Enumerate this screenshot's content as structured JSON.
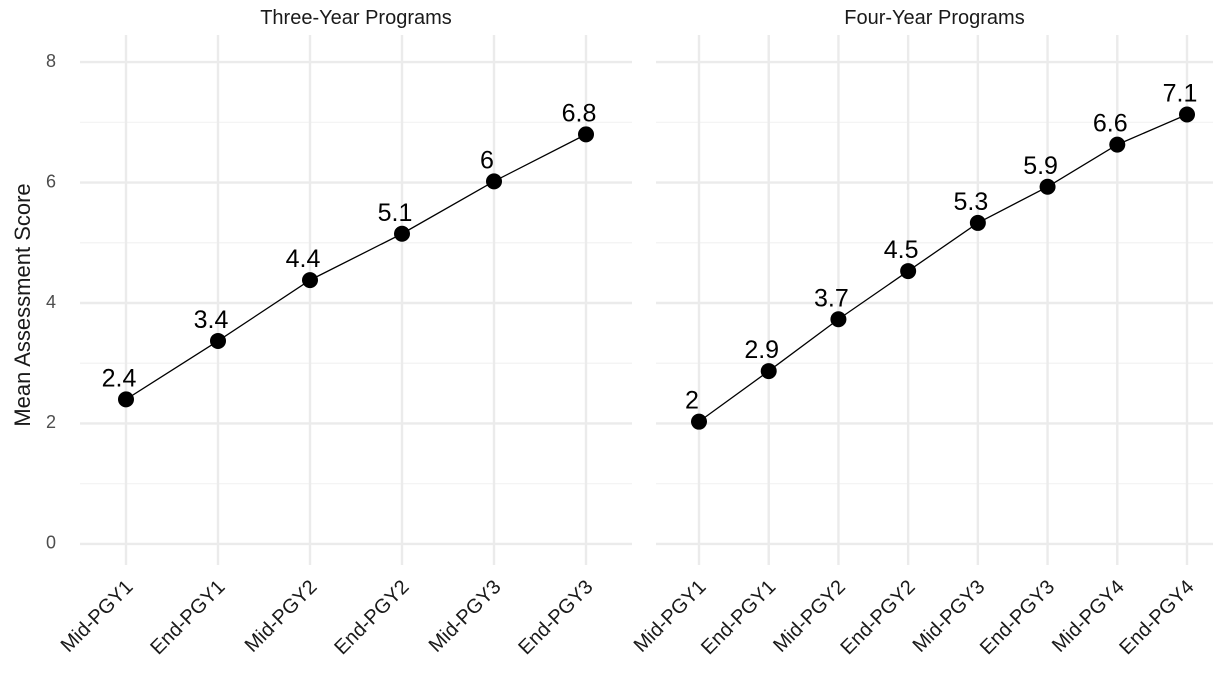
{
  "chart_data": {
    "type": "line",
    "ylabel": "Mean Assessment Score",
    "ylim": [
      0,
      8
    ],
    "yticks": [
      0,
      2,
      4,
      6,
      8
    ],
    "grid": true,
    "legend": "none",
    "colors": {
      "line": "#000000",
      "grid": "#ebebeb",
      "text": "#1a1a1a"
    },
    "panels": [
      {
        "title": "Three-Year Programs",
        "categories": [
          "Mid-PGY1",
          "End-PGY1",
          "Mid-PGY2",
          "End-PGY2",
          "Mid-PGY3",
          "End-PGY3"
        ],
        "values": [
          2.4,
          3.37,
          4.38,
          5.15,
          6.02,
          6.8
        ],
        "labels": [
          "2.4",
          "3.4",
          "4.4",
          "5.1",
          "6",
          "6.8"
        ]
      },
      {
        "title": "Four-Year Programs",
        "categories": [
          "Mid-PGY1",
          "End-PGY1",
          "Mid-PGY2",
          "End-PGY2",
          "Mid-PGY3",
          "End-PGY3",
          "Mid-PGY4",
          "End-PGY4"
        ],
        "values": [
          2.03,
          2.87,
          3.73,
          4.53,
          5.33,
          5.93,
          6.63,
          7.13
        ],
        "labels": [
          "2",
          "2.9",
          "3.7",
          "4.5",
          "5.3",
          "5.9",
          "6.6",
          "7.1"
        ]
      }
    ]
  }
}
